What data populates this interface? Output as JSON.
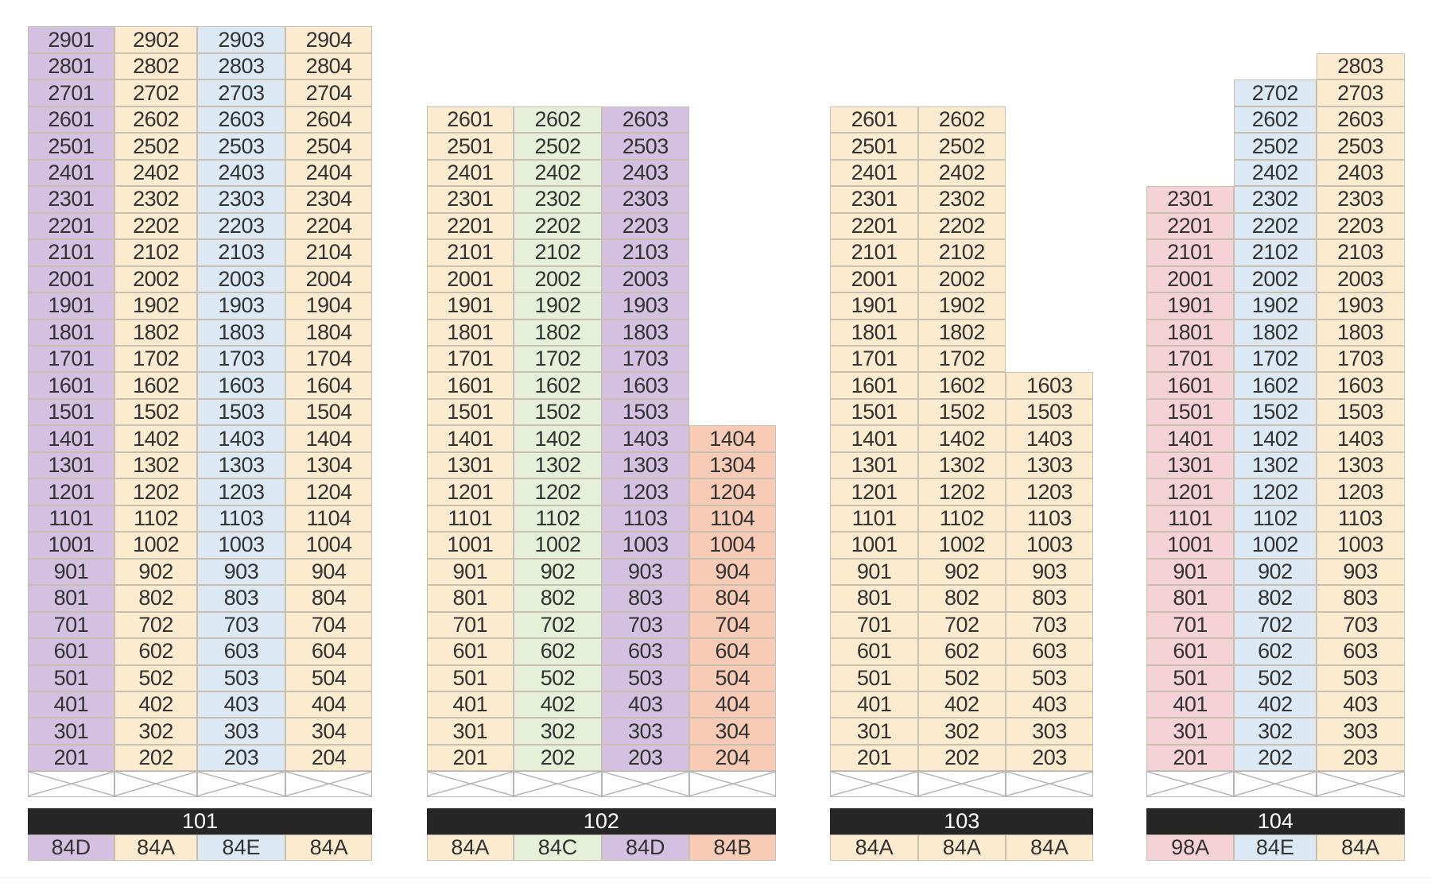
{
  "type_colors": {
    "84A": "#fdebd0",
    "84B": "#f8cbb6",
    "84C": "#e6efd8",
    "84D": "#d4c1e2",
    "84E": "#dce8f4",
    "98A": "#f5d1d8"
  },
  "buildings": [
    {
      "id": "101",
      "columns": [
        {
          "line": "01",
          "type": "84D",
          "from": 2,
          "to": 29
        },
        {
          "line": "02",
          "type": "84A",
          "from": 2,
          "to": 29
        },
        {
          "line": "03",
          "type": "84E",
          "from": 2,
          "to": 29
        },
        {
          "line": "04",
          "type": "84A",
          "from": 2,
          "to": 29
        }
      ]
    },
    {
      "id": "102",
      "columns": [
        {
          "line": "01",
          "type": "84A",
          "from": 2,
          "to": 26
        },
        {
          "line": "02",
          "type": "84C",
          "from": 2,
          "to": 26
        },
        {
          "line": "03",
          "type": "84D",
          "from": 2,
          "to": 26
        },
        {
          "line": "04",
          "type": "84B",
          "from": 2,
          "to": 14
        }
      ]
    },
    {
      "id": "103",
      "columns": [
        {
          "line": "01",
          "type": "84A",
          "from": 2,
          "to": 26
        },
        {
          "line": "02",
          "type": "84A",
          "from": 2,
          "to": 26
        },
        {
          "line": "03",
          "type": "84A",
          "from": 2,
          "to": 16
        }
      ]
    },
    {
      "id": "104",
      "columns": [
        {
          "line": "01",
          "type": "98A",
          "from": 2,
          "to": 23
        },
        {
          "line": "02",
          "type": "84E",
          "from": 2,
          "to": 27
        },
        {
          "line": "03",
          "type": "84A",
          "from": 2,
          "to": 28
        }
      ]
    }
  ]
}
